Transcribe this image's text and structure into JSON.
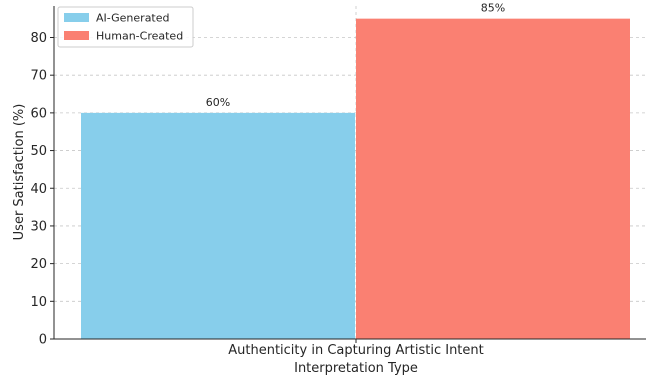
{
  "chart_data": {
    "type": "bar",
    "categories": [
      "Authenticity in Capturing Artistic Intent"
    ],
    "series": [
      {
        "name": "AI-Generated",
        "values": [
          60
        ],
        "color": "#87ceeb",
        "label": "60%"
      },
      {
        "name": "Human-Created",
        "values": [
          85
        ],
        "color": "#fa8072",
        "label": "85%"
      }
    ],
    "title": "",
    "xlabel": "Interpretation Type",
    "ylabel": "User Satisfaction (%)",
    "ylim": [
      0,
      88
    ],
    "yticks": [
      0,
      10,
      20,
      30,
      40,
      50,
      60,
      70,
      80
    ],
    "grid": true,
    "legend": "top-left"
  }
}
